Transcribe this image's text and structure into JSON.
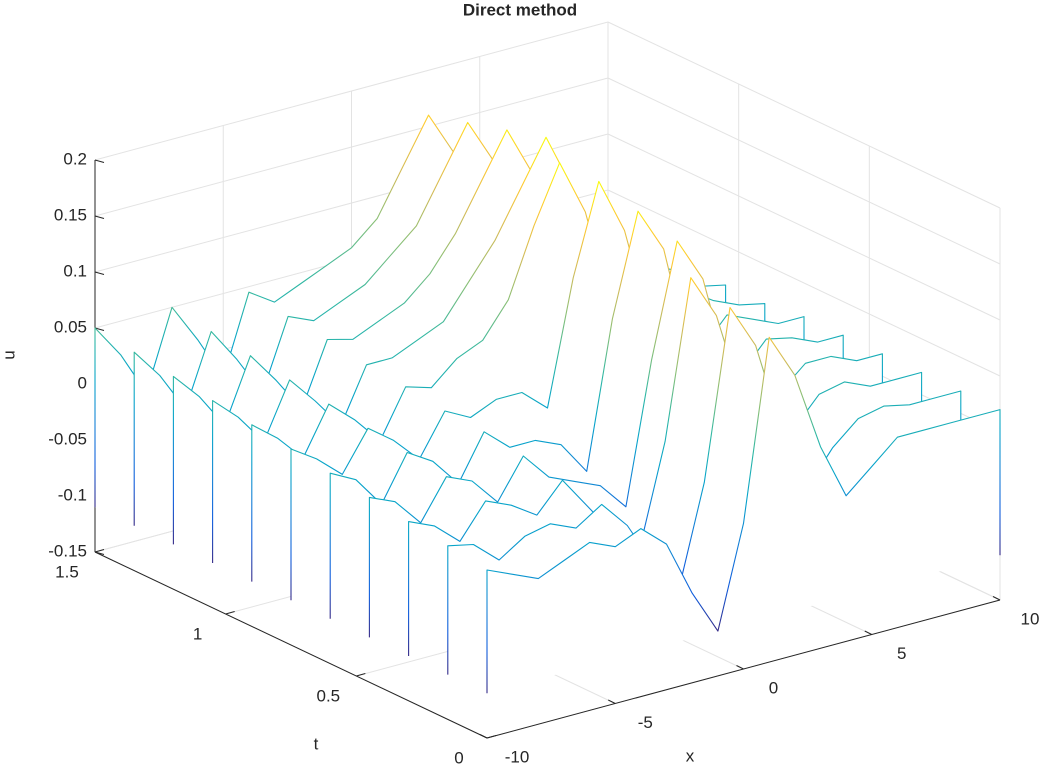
{
  "chart_data": {
    "type": "waterfall",
    "title": "Direct method",
    "xlabel": "x",
    "ylabel": "t",
    "zlabel": "u",
    "xlim": [
      -10,
      10
    ],
    "ylim": [
      0,
      1.5
    ],
    "zlim": [
      -0.15,
      0.2
    ],
    "xticks": [
      -10,
      -5,
      0,
      5,
      10
    ],
    "yticks": [
      0,
      0.5,
      1,
      1.5
    ],
    "zticks": [
      -0.15,
      -0.1,
      -0.05,
      0,
      0.05,
      0.1,
      0.15,
      0.2
    ],
    "grid": true,
    "colormap": [
      "#352a87",
      "#0f5cdd",
      "#1481d6",
      "#06a4ca",
      "#2eb7a4",
      "#87bf77",
      "#d1bb59",
      "#fec832",
      "#f9fb0e"
    ],
    "x": [
      -10,
      -9,
      -8,
      -7,
      -6,
      -5,
      -4,
      -3,
      -2,
      -1,
      0,
      1,
      2,
      3,
      4,
      5,
      6,
      7,
      8,
      9,
      10
    ],
    "t": [
      0,
      0.15,
      0.3,
      0.45,
      0.6,
      0.75,
      0.9,
      1.05,
      1.2,
      1.35,
      1.5
    ],
    "z": [
      [
        0.0,
        -0.01,
        -0.02,
        -0.01,
        0.0,
        -0.01,
        0.0,
        -0.02,
        -0.07,
        -0.11,
        -0.02,
        0.14,
        0.1,
        0.03,
        -0.02,
        0.0,
        0.02,
        0.02,
        0.02,
        0.02,
        0.02
      ],
      [
        0.005,
        0.0,
        -0.02,
        -0.005,
        0.0,
        -0.01,
        0.005,
        -0.02,
        -0.06,
        -0.09,
        0.0,
        0.15,
        0.11,
        0.03,
        -0.03,
        0.0,
        0.02,
        0.025,
        0.02,
        0.02,
        0.02
      ],
      [
        0.01,
        0.0,
        -0.02,
        0.01,
        0.0,
        -0.015,
        0.01,
        -0.02,
        -0.05,
        -0.07,
        0.02,
        0.16,
        0.12,
        0.04,
        -0.03,
        0.0,
        0.025,
        0.03,
        0.02,
        0.02,
        0.02
      ],
      [
        0.015,
        0.005,
        -0.02,
        0.015,
        0.005,
        -0.02,
        0.015,
        -0.01,
        -0.02,
        -0.03,
        -0.055,
        0.07,
        0.17,
        0.13,
        0.04,
        -0.03,
        0.01,
        0.03,
        0.03,
        0.02,
        0.02
      ],
      [
        0.02,
        0.008,
        -0.02,
        0.02,
        0.006,
        -0.02,
        0.02,
        0.0,
        0.0,
        -0.01,
        -0.04,
        0.09,
        0.18,
        0.14,
        0.04,
        -0.03,
        0.01,
        0.035,
        0.03,
        0.02,
        0.02
      ],
      [
        0.025,
        0.01,
        -0.01,
        0.025,
        0.008,
        -0.015,
        0.022,
        0.01,
        0.02,
        0.02,
        0.0,
        0.11,
        0.19,
        0.14,
        0.05,
        -0.03,
        0.015,
        0.04,
        0.03,
        0.02,
        0.02
      ],
      [
        0.03,
        0.012,
        -0.012,
        0.03,
        0.01,
        -0.015,
        0.027,
        0.02,
        0.04,
        0.05,
        0.08,
        0.14,
        0.19,
        0.14,
        0.05,
        -0.02,
        0.02,
        0.045,
        0.03,
        0.02,
        0.015
      ],
      [
        0.035,
        0.014,
        -0.014,
        0.035,
        0.01,
        -0.018,
        0.03,
        0.03,
        0.04,
        0.05,
        0.08,
        0.11,
        0.15,
        0.19,
        0.14,
        0.05,
        0.0,
        0.04,
        0.035,
        0.02,
        0.015
      ],
      [
        0.04,
        0.016,
        -0.016,
        0.04,
        0.012,
        -0.02,
        0.036,
        0.03,
        0.04,
        0.05,
        0.07,
        0.1,
        0.14,
        0.18,
        0.135,
        0.05,
        0.01,
        0.045,
        0.035,
        0.02,
        0.01
      ],
      [
        0.045,
        0.018,
        -0.018,
        0.045,
        0.014,
        -0.022,
        0.04,
        0.03,
        0.04,
        0.05,
        0.07,
        0.09,
        0.13,
        0.17,
        0.13,
        0.05,
        0.015,
        0.045,
        0.035,
        0.02,
        0.01
      ],
      [
        0.05,
        0.02,
        -0.02,
        0.05,
        0.015,
        -0.025,
        0.045,
        0.03,
        0.04,
        0.05,
        0.06,
        0.08,
        0.12,
        0.16,
        0.12,
        0.04,
        0.02,
        0.05,
        0.035,
        0.02,
        0.01
      ]
    ]
  }
}
